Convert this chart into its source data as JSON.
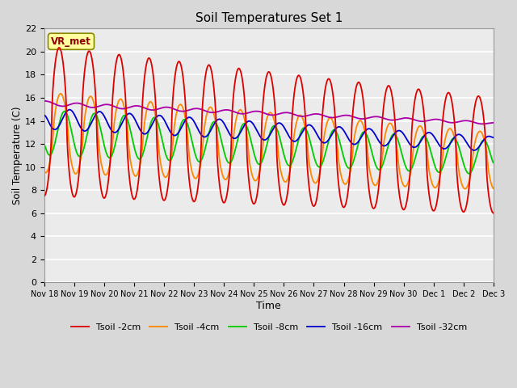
{
  "title": "Soil Temperatures Set 1",
  "xlabel": "Time",
  "ylabel": "Soil Temperature (C)",
  "ylim": [
    0,
    22
  ],
  "yticks": [
    0,
    2,
    4,
    6,
    8,
    10,
    12,
    14,
    16,
    18,
    20,
    22
  ],
  "annotation_text": "VR_met",
  "annotation_color": "#8B0000",
  "annotation_bg": "#FFFFA0",
  "line_colors": {
    "Tsoil -2cm": "#DD0000",
    "Tsoil -4cm": "#FF8800",
    "Tsoil -8cm": "#00CC00",
    "Tsoil -16cm": "#0000CC",
    "Tsoil -32cm": "#AA00AA"
  },
  "bg_color": "#D8D8D8",
  "plot_bg": "#EBEBEB",
  "grid_color": "#FFFFFF",
  "x_tick_labels": [
    "Nov 18",
    "Nov 19",
    "Nov 20",
    "Nov 21",
    "Nov 22",
    "Nov 23",
    "Nov 24",
    "Nov 25",
    "Nov 26",
    "Nov 27",
    "Nov 28",
    "Nov 29",
    "Nov 30",
    "Dec 1",
    "Dec 2",
    "Dec 3"
  ],
  "num_days": 15,
  "points_per_day": 144
}
